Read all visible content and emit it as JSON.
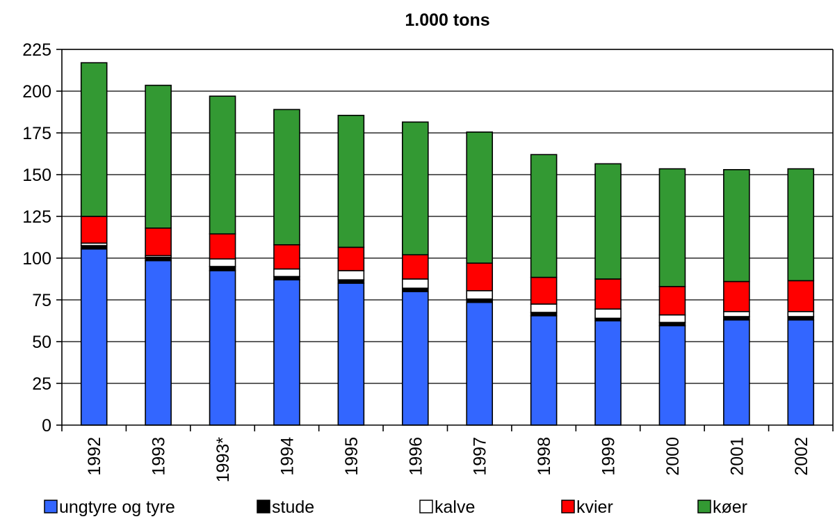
{
  "chart_data": {
    "type": "bar",
    "stacked": true,
    "title": "1.000 tons",
    "xlabel": "",
    "ylabel": "",
    "ylim": [
      0,
      225
    ],
    "yticks": [
      0,
      25,
      50,
      75,
      100,
      125,
      150,
      175,
      200,
      225
    ],
    "grid": true,
    "legend_position": "bottom",
    "categories": [
      "1992",
      "1993",
      "1993*",
      "1994",
      "1995",
      "1996",
      "1997",
      "1998",
      "1999",
      "2000",
      "2001",
      "2002"
    ],
    "series": [
      {
        "name": "ungtyre og tyre",
        "color": "#3366ff",
        "values": [
          105.5,
          98.5,
          92.5,
          87,
          85,
          80,
          73.5,
          65.5,
          62.5,
          59.5,
          63,
          63
        ]
      },
      {
        "name": "stude",
        "color": "#000000",
        "values": [
          2,
          2,
          2.5,
          2,
          2,
          2,
          2,
          2,
          1.5,
          2,
          2,
          2
        ]
      },
      {
        "name": "kalve",
        "color": "#ffffff",
        "values": [
          1.5,
          1,
          4.5,
          4.5,
          5.5,
          5.5,
          5,
          5,
          5.5,
          4.5,
          3,
          3
        ]
      },
      {
        "name": "kvier",
        "color": "#ff0000",
        "values": [
          16,
          16.5,
          15,
          14.5,
          14,
          14.5,
          16.5,
          16,
          18,
          17,
          18,
          18.5
        ]
      },
      {
        "name": "køer",
        "color": "#339933",
        "values": [
          92,
          85.5,
          82.5,
          81,
          79,
          79.5,
          78.5,
          73.5,
          69,
          70.5,
          67,
          67
        ]
      }
    ]
  }
}
